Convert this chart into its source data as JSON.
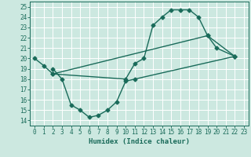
{
  "title": "",
  "xlabel": "Humidex (Indice chaleur)",
  "bg_color": "#cce8e0",
  "grid_color": "#ffffff",
  "line_color": "#1a6b5a",
  "xlim": [
    -0.5,
    23.5
  ],
  "ylim": [
    13.5,
    25.5
  ],
  "xticks": [
    0,
    1,
    2,
    3,
    4,
    5,
    6,
    7,
    8,
    9,
    10,
    11,
    12,
    13,
    14,
    15,
    16,
    17,
    18,
    19,
    20,
    21,
    22,
    23
  ],
  "yticks": [
    14,
    15,
    16,
    17,
    18,
    19,
    20,
    21,
    22,
    23,
    24,
    25
  ],
  "line1_x": [
    0,
    1,
    2,
    10,
    11,
    12,
    13,
    14,
    15,
    16,
    17,
    18,
    19,
    20,
    22
  ],
  "line1_y": [
    20.0,
    19.3,
    18.5,
    18.0,
    19.5,
    20.0,
    23.2,
    24.0,
    24.7,
    24.7,
    24.7,
    24.0,
    22.2,
    21.0,
    20.2
  ],
  "line2_x": [
    2,
    3,
    4,
    5,
    6,
    7,
    8,
    9,
    10,
    11,
    22
  ],
  "line2_y": [
    19.0,
    18.0,
    15.5,
    15.0,
    14.3,
    14.5,
    15.0,
    15.8,
    17.8,
    18.0,
    20.2
  ],
  "line3_x": [
    2,
    19,
    22
  ],
  "line3_y": [
    18.5,
    22.2,
    20.2
  ],
  "marker": "D",
  "markersize": 2.5,
  "linewidth": 1.0,
  "xlabel_fontsize": 6.5,
  "tick_fontsize": 5.5
}
